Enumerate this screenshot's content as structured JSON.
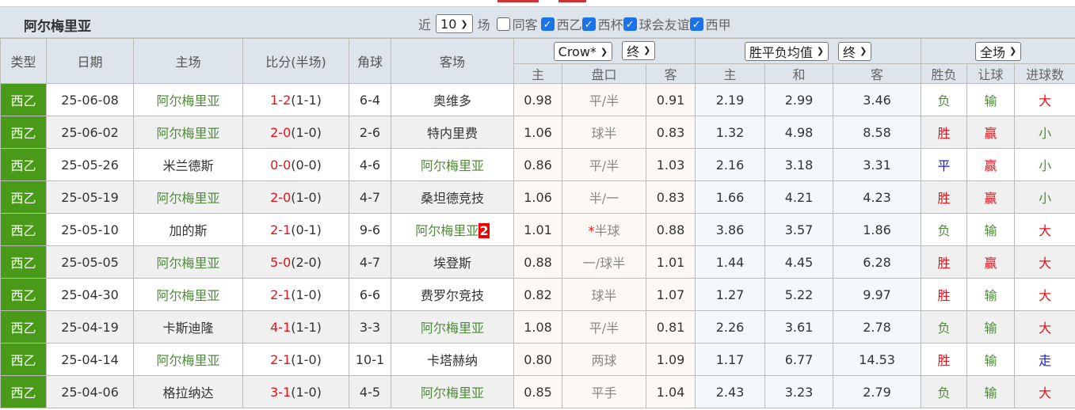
{
  "header": {
    "title": "阿尔梅里亚",
    "near_label": "近",
    "count": "10",
    "games_label": "场",
    "same_label": "同客",
    "leagues": [
      {
        "label": "西乙",
        "checked": true
      },
      {
        "label": "西杯",
        "checked": true
      },
      {
        "label": "球会友谊",
        "checked": true
      },
      {
        "label": "西甲",
        "checked": true
      }
    ]
  },
  "columns": {
    "type": "类型",
    "date": "日期",
    "home": "主场",
    "score": "比分(半场)",
    "corner": "角球",
    "away": "客场",
    "company": "Crow*",
    "company_stage": "终",
    "euro": "胜平负均值",
    "euro_stage": "终",
    "range": "全场",
    "sub": [
      "主",
      "盘口",
      "客",
      "主",
      "和",
      "客",
      "胜负",
      "让球",
      "进球数"
    ]
  },
  "colors": {
    "type_bg": "#4a9a1a",
    "team_green": "#4f8b3a",
    "red": "#e8101a",
    "blue": "#1a1ad8"
  },
  "rows": [
    {
      "type": "西乙",
      "date": "25-06-08",
      "home": "阿尔梅里亚",
      "ft": "1-2",
      "ht": "(1-1)",
      "corner": "6-4",
      "away": "奥维多",
      "badge": "",
      "ah_h": "0.98",
      "ah_line": "平/半",
      "ah_a": "0.91",
      "eu_h": "2.19",
      "eu_d": "2.99",
      "eu_a": "3.46",
      "wl": "负",
      "hc": "输",
      "ou": "大",
      "homeHL": true,
      "awayHL": false
    },
    {
      "type": "西乙",
      "date": "25-06-02",
      "home": "阿尔梅里亚",
      "ft": "2-0",
      "ht": "(1-0)",
      "corner": "2-6",
      "away": "特内里费",
      "badge": "",
      "ah_h": "1.06",
      "ah_line": "球半",
      "ah_a": "0.83",
      "eu_h": "1.32",
      "eu_d": "4.98",
      "eu_a": "8.58",
      "wl": "胜",
      "hc": "赢",
      "ou": "小",
      "homeHL": true,
      "awayHL": false
    },
    {
      "type": "西乙",
      "date": "25-05-26",
      "home": "米兰德斯",
      "ft": "0-0",
      "ht": "(0-0)",
      "corner": "4-6",
      "away": "阿尔梅里亚",
      "badge": "",
      "ah_h": "0.86",
      "ah_line": "平/半",
      "ah_a": "1.03",
      "eu_h": "2.16",
      "eu_d": "3.18",
      "eu_a": "3.31",
      "wl": "平",
      "hc": "赢",
      "ou": "小",
      "homeHL": false,
      "awayHL": true
    },
    {
      "type": "西乙",
      "date": "25-05-19",
      "home": "阿尔梅里亚",
      "ft": "2-0",
      "ht": "(1-0)",
      "corner": "4-7",
      "away": "桑坦德竞技",
      "badge": "",
      "ah_h": "1.06",
      "ah_line": "半/一",
      "ah_a": "0.83",
      "eu_h": "1.66",
      "eu_d": "4.21",
      "eu_a": "4.23",
      "wl": "胜",
      "hc": "赢",
      "ou": "小",
      "homeHL": true,
      "awayHL": false
    },
    {
      "type": "西乙",
      "date": "25-05-10",
      "home": "加的斯",
      "ft": "2-1",
      "ht": "(0-1)",
      "corner": "9-6",
      "away": "阿尔梅里亚",
      "badge": "2",
      "ah_h": "1.01",
      "ah_star": "*",
      "ah_line": "半球",
      "ah_a": "0.88",
      "eu_h": "3.86",
      "eu_d": "3.57",
      "eu_a": "1.86",
      "wl": "负",
      "hc": "输",
      "ou": "大",
      "homeHL": false,
      "awayHL": true
    },
    {
      "type": "西乙",
      "date": "25-05-05",
      "home": "阿尔梅里亚",
      "ft": "5-0",
      "ht": "(2-0)",
      "corner": "4-7",
      "away": "埃登斯",
      "badge": "",
      "ah_h": "0.88",
      "ah_line": "一/球半",
      "ah_a": "1.01",
      "eu_h": "1.44",
      "eu_d": "4.45",
      "eu_a": "6.28",
      "wl": "胜",
      "hc": "赢",
      "ou": "大",
      "homeHL": true,
      "awayHL": false
    },
    {
      "type": "西乙",
      "date": "25-04-30",
      "home": "阿尔梅里亚",
      "ft": "2-1",
      "ht": "(1-0)",
      "corner": "6-6",
      "away": "费罗尔竞技",
      "badge": "",
      "ah_h": "0.82",
      "ah_line": "球半",
      "ah_a": "1.07",
      "eu_h": "1.27",
      "eu_d": "5.22",
      "eu_a": "9.97",
      "wl": "胜",
      "hc": "输",
      "ou": "大",
      "homeHL": true,
      "awayHL": false
    },
    {
      "type": "西乙",
      "date": "25-04-19",
      "home": "卡斯迪隆",
      "ft": "4-1",
      "ht": "(1-1)",
      "corner": "3-3",
      "away": "阿尔梅里亚",
      "badge": "",
      "ah_h": "1.08",
      "ah_line": "平/半",
      "ah_a": "0.81",
      "eu_h": "2.26",
      "eu_d": "3.61",
      "eu_a": "2.78",
      "wl": "负",
      "hc": "输",
      "ou": "大",
      "homeHL": false,
      "awayHL": true
    },
    {
      "type": "西乙",
      "date": "25-04-14",
      "home": "阿尔梅里亚",
      "ft": "2-1",
      "ht": "(1-0)",
      "corner": "10-1",
      "away": "卡塔赫纳",
      "badge": "",
      "ah_h": "0.80",
      "ah_line": "两球",
      "ah_a": "1.09",
      "eu_h": "1.17",
      "eu_d": "6.77",
      "eu_a": "14.53",
      "wl": "胜",
      "hc": "输",
      "ou": "走",
      "homeHL": true,
      "awayHL": false
    },
    {
      "type": "西乙",
      "date": "25-04-06",
      "home": "格拉纳达",
      "ft": "3-1",
      "ht": "(1-0)",
      "corner": "4-5",
      "away": "阿尔梅里亚",
      "badge": "",
      "ah_h": "0.85",
      "ah_line": "平手",
      "ah_a": "1.04",
      "eu_h": "2.43",
      "eu_d": "3.23",
      "eu_a": "2.79",
      "wl": "负",
      "hc": "输",
      "ou": "大",
      "homeHL": false,
      "awayHL": true
    }
  ]
}
